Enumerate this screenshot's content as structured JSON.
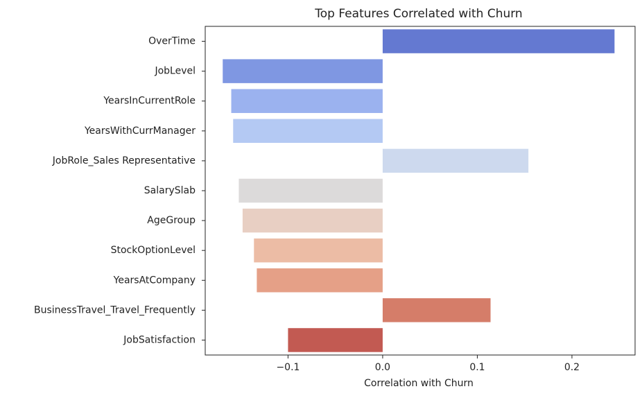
{
  "chart_data": {
    "type": "barh",
    "title": "Top Features Correlated with Churn",
    "x_label": "Correlation with Churn",
    "categories": [
      "OverTime",
      "JobLevel",
      "YearsInCurrentRole",
      "YearsWithCurrManager",
      "JobRole_Sales Representative",
      "SalarySlab",
      "AgeGroup",
      "StockOptionLevel",
      "YearsAtCompany",
      "BusinessTravel_Travel_Frequently",
      "JobSatisfaction"
    ],
    "values": [
      0.245,
      -0.169,
      -0.16,
      -0.158,
      0.154,
      -0.152,
      -0.148,
      -0.136,
      -0.133,
      0.114,
      -0.1
    ],
    "colors": [
      "#6479d1",
      "#7f97e2",
      "#9bb2ef",
      "#b4c9f3",
      "#cdd9ee",
      "#dcdada",
      "#e8cfc3",
      "#ecbca5",
      "#e5a087",
      "#d57d69",
      "#c25a52"
    ],
    "xlim": [
      -0.1875,
      0.2667
    ],
    "xticks": [
      {
        "value": -0.1,
        "label": "−0.1"
      },
      {
        "value": 0,
        "label": "0.0"
      },
      0.1,
      0.2
    ],
    "grid": false
  }
}
